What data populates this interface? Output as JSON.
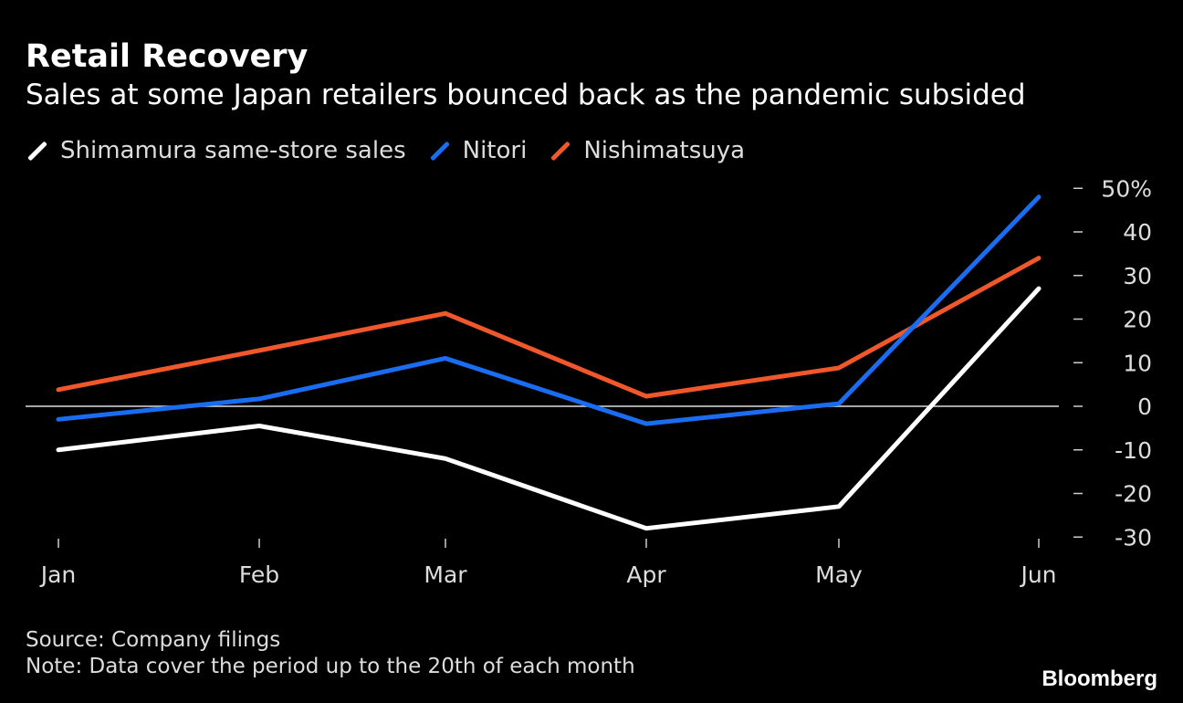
{
  "header": {
    "title": "Retail Recovery",
    "subtitle": "Sales at some Japan retailers bounced back as the pandemic subsided"
  },
  "footer": {
    "source": "Source: Company filings",
    "note": "Note: Data cover the period up to the 20th of each month",
    "brand": "Bloomberg"
  },
  "chart_data": {
    "type": "line",
    "title": "Retail Recovery",
    "subtitle": "Sales at some Japan retailers bounced back as the pandemic subsided",
    "categories": [
      "Jan",
      "Feb",
      "Mar",
      "Apr",
      "May",
      "Jun"
    ],
    "series": [
      {
        "name": "Shimamura same-store sales",
        "color": "#ffffff",
        "values": [
          -10,
          -4.5,
          -12,
          -28,
          -23,
          27
        ]
      },
      {
        "name": "Nitori",
        "color": "#1a6cf0",
        "values": [
          -3,
          1.7,
          11,
          -4,
          0.6,
          48
        ]
      },
      {
        "name": "Nishimatsuya",
        "color": "#f0572a",
        "values": [
          3.8,
          12.8,
          21.3,
          2.3,
          8.8,
          34
        ]
      }
    ],
    "yticks": [
      {
        "v": 50,
        "label": "50%"
      },
      {
        "v": 40,
        "label": "40"
      },
      {
        "v": 30,
        "label": "30"
      },
      {
        "v": 20,
        "label": "20"
      },
      {
        "v": 10,
        "label": "10"
      },
      {
        "v": 0,
        "label": "0"
      },
      {
        "v": -10,
        "label": "-10"
      },
      {
        "v": -20,
        "label": "-20"
      },
      {
        "v": -30,
        "label": "-30"
      }
    ],
    "ylim": [
      -30,
      50
    ],
    "xlabel": "",
    "ylabel": "",
    "legend_position": "top-left"
  }
}
